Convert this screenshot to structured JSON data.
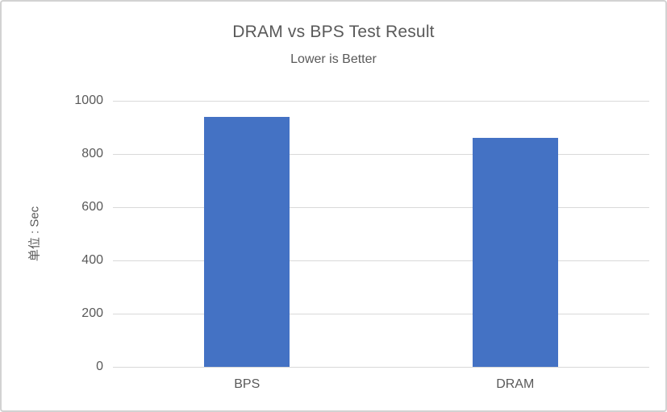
{
  "chart_data": {
    "type": "bar",
    "title": "DRAM vs BPS Test Result",
    "subtitle": "Lower is Better",
    "categories": [
      "BPS",
      "DRAM"
    ],
    "values": [
      940,
      860
    ],
    "xlabel": "",
    "ylabel": "单位 : Sec",
    "ylim": [
      0,
      1000
    ],
    "yticks": [
      0,
      200,
      400,
      600,
      800,
      1000
    ],
    "grid": true,
    "legend": false,
    "bar_color": "#4472C4",
    "gridline_color": "#D9D9D9",
    "text_color": "#595959",
    "frame_border_color": "#D2D2D2"
  }
}
